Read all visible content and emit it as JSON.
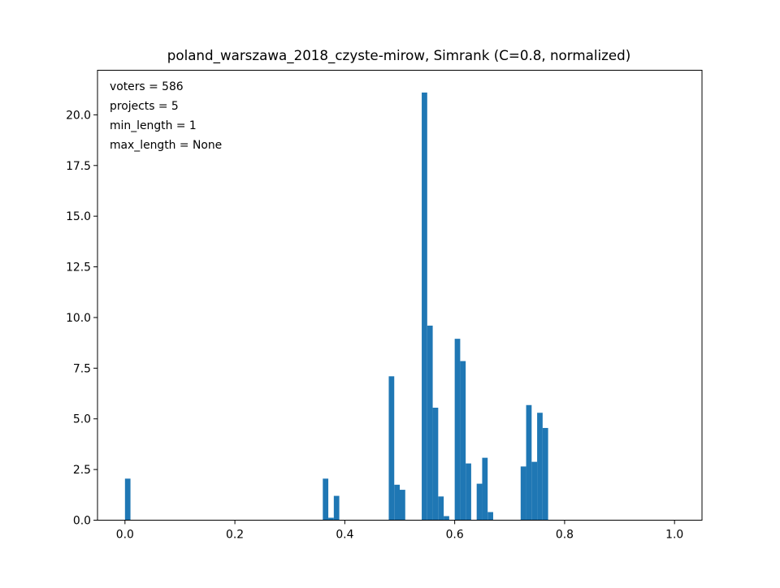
{
  "chart_data": {
    "type": "bar",
    "title": "poland_warszawa_2018_czyste-mirow, Simrank (C=0.8, normalized)",
    "xlabel": "",
    "ylabel": "",
    "xlim": [
      -0.05,
      1.05
    ],
    "ylim": [
      0,
      22.2
    ],
    "bin_width": 0.01,
    "bar_color": "#1f77b4",
    "grid": false,
    "x_ticks": [
      {
        "value": 0.0,
        "label": "0.0"
      },
      {
        "value": 0.2,
        "label": "0.2"
      },
      {
        "value": 0.4,
        "label": "0.4"
      },
      {
        "value": 0.6,
        "label": "0.6"
      },
      {
        "value": 0.8,
        "label": "0.8"
      },
      {
        "value": 1.0,
        "label": "1.0"
      }
    ],
    "y_ticks": [
      {
        "value": 0.0,
        "label": "0.0"
      },
      {
        "value": 2.5,
        "label": "2.5"
      },
      {
        "value": 5.0,
        "label": "5.0"
      },
      {
        "value": 7.5,
        "label": "7.5"
      },
      {
        "value": 10.0,
        "label": "10.0"
      },
      {
        "value": 12.5,
        "label": "12.5"
      },
      {
        "value": 15.0,
        "label": "15.0"
      },
      {
        "value": 17.5,
        "label": "17.5"
      },
      {
        "value": 20.0,
        "label": "20.0"
      }
    ],
    "bins": [
      {
        "x": 0.0,
        "value": 2.05
      },
      {
        "x": 0.36,
        "value": 2.05
      },
      {
        "x": 0.37,
        "value": 0.12
      },
      {
        "x": 0.38,
        "value": 1.2
      },
      {
        "x": 0.48,
        "value": 7.1
      },
      {
        "x": 0.49,
        "value": 1.75
      },
      {
        "x": 0.5,
        "value": 1.5
      },
      {
        "x": 0.54,
        "value": 21.1
      },
      {
        "x": 0.55,
        "value": 9.6
      },
      {
        "x": 0.56,
        "value": 5.55
      },
      {
        "x": 0.57,
        "value": 1.17
      },
      {
        "x": 0.58,
        "value": 0.2
      },
      {
        "x": 0.6,
        "value": 8.95
      },
      {
        "x": 0.61,
        "value": 7.85
      },
      {
        "x": 0.62,
        "value": 2.8
      },
      {
        "x": 0.64,
        "value": 1.8
      },
      {
        "x": 0.65,
        "value": 3.08
      },
      {
        "x": 0.66,
        "value": 0.4
      },
      {
        "x": 0.72,
        "value": 2.65
      },
      {
        "x": 0.73,
        "value": 5.68
      },
      {
        "x": 0.74,
        "value": 2.88
      },
      {
        "x": 0.75,
        "value": 5.3
      },
      {
        "x": 0.76,
        "value": 4.55
      }
    ],
    "annotations": [
      "voters = 586",
      "projects = 5",
      "min_length = 1",
      "max_length = None"
    ],
    "annotation_placement": "top-left"
  }
}
